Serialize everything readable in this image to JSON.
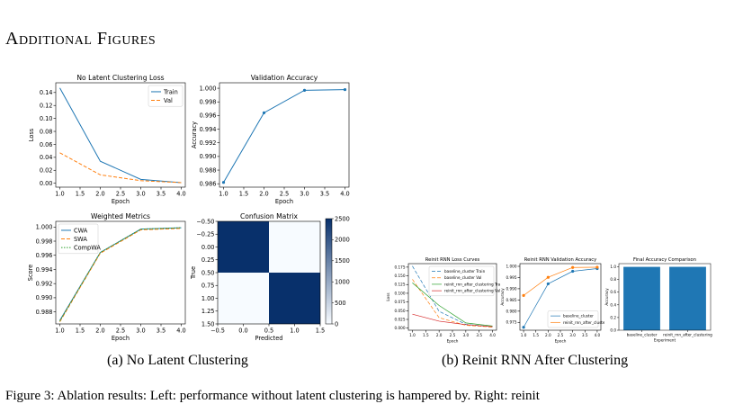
{
  "section": {
    "title": "Additional Figures"
  },
  "captions": {
    "a": "(a) No Latent Clustering",
    "b": "(b) Reinit RNN After Clustering",
    "figure": "Figure 3:  Ablation results: Left: performance without latent clustering is hampered by. Right: reinit"
  },
  "chart_data": [
    {
      "type": "line",
      "title": "No Latent Clustering Loss",
      "xlabel": "Epoch",
      "ylabel": "Loss",
      "x": [
        1,
        2,
        3,
        4
      ],
      "xlim": [
        0.9,
        4.1
      ],
      "ylim": [
        -0.006,
        0.155
      ],
      "xticks": [
        "1.0",
        "1.5",
        "2.0",
        "2.5",
        "3.0",
        "3.5",
        "4.0"
      ],
      "yticks": [
        "0.00",
        "0.02",
        "0.04",
        "0.06",
        "0.08",
        "0.10",
        "0.12",
        "0.14"
      ],
      "series": [
        {
          "name": "Train",
          "values": [
            0.147,
            0.034,
            0.006,
            0.001
          ],
          "color": "#1f77b4",
          "dash": "solid"
        },
        {
          "name": "Val",
          "values": [
            0.047,
            0.013,
            0.004,
            0.001
          ],
          "color": "#ff7f0e",
          "dash": "dashed"
        }
      ],
      "legend": "top-right"
    },
    {
      "type": "line",
      "title": "Validation Accuracy",
      "xlabel": "Epoch",
      "ylabel": "Accuracy",
      "x": [
        1,
        2,
        3,
        4
      ],
      "xlim": [
        0.9,
        4.1
      ],
      "ylim": [
        0.9855,
        1.0008
      ],
      "xticks": [
        "1.0",
        "1.5",
        "2.0",
        "2.5",
        "3.0",
        "3.5",
        "4.0"
      ],
      "yticks": [
        "0.986",
        "0.988",
        "0.990",
        "0.992",
        "0.994",
        "0.996",
        "0.998",
        "1.000"
      ],
      "series": [
        {
          "values": [
            0.9862,
            0.9964,
            0.9997,
            0.9998
          ],
          "color": "#1f77b4",
          "dash": "solid",
          "markers": true
        }
      ]
    },
    {
      "type": "line",
      "title": "Weighted Metrics",
      "xlabel": "Epoch",
      "ylabel": "Score",
      "x": [
        1,
        2,
        3,
        4
      ],
      "xlim": [
        0.9,
        4.1
      ],
      "ylim": [
        0.9863,
        1.0008
      ],
      "xticks": [
        "1.0",
        "1.5",
        "2.0",
        "2.5",
        "3.0",
        "3.5",
        "4.0"
      ],
      "yticks": [
        "0.988",
        "0.990",
        "0.992",
        "0.994",
        "0.996",
        "0.998",
        "1.000"
      ],
      "series": [
        {
          "name": "CWA",
          "values": [
            0.9868,
            0.9964,
            0.9997,
            0.9999
          ],
          "color": "#1f77b4",
          "dash": "solid"
        },
        {
          "name": "SWA",
          "values": [
            0.9866,
            0.9963,
            0.9996,
            0.9998
          ],
          "color": "#ff7f0e",
          "dash": "dashed"
        },
        {
          "name": "CompWA",
          "values": [
            0.9867,
            0.9964,
            0.9997,
            0.9999
          ],
          "color": "#2ca02c",
          "dash": "dotted"
        }
      ],
      "legend": "top-left"
    },
    {
      "type": "heatmap",
      "title": "Confusion Matrix",
      "xlabel": "Predicted",
      "ylabel": "True",
      "xticks": [
        "−0.5",
        "0.0",
        "0.5",
        "1.0",
        "1.5"
      ],
      "yticks": [
        "−0.50",
        "−0.25",
        "0.00",
        "0.25",
        "0.50",
        "0.75",
        "1.00",
        "1.25",
        "1.50"
      ],
      "matrix": [
        [
          2500,
          0
        ],
        [
          0,
          2500
        ]
      ],
      "colorbar_ticks": [
        "0",
        "500",
        "1000",
        "1500",
        "2000",
        "2500"
      ],
      "cmap": [
        "#f7fbff",
        "#08306b"
      ]
    },
    {
      "type": "line",
      "title": "Reinit RNN Loss Curves",
      "xlabel": "Epoch",
      "ylabel": "Loss",
      "x": [
        1,
        2,
        3,
        4
      ],
      "xlim": [
        0.85,
        4.15
      ],
      "ylim": [
        -0.006,
        0.185
      ],
      "xticks": [
        "1.0",
        "1.5",
        "2.0",
        "2.5",
        "3.0",
        "3.5",
        "4.0"
      ],
      "yticks": [
        "0.000",
        "0.025",
        "0.050",
        "0.075",
        "0.100",
        "0.125",
        "0.150",
        "0.175"
      ],
      "series": [
        {
          "name": "baseline_cluster Train",
          "values": [
            0.178,
            0.048,
            0.011,
            0.004
          ],
          "color": "#1f77b4",
          "dash": "dashed"
        },
        {
          "name": "baseline_cluster Val",
          "values": [
            0.14,
            0.03,
            0.008,
            0.003
          ],
          "color": "#ff7f0e",
          "dash": "dashed"
        },
        {
          "name": "reinit_rnn_after_clustering Train",
          "values": [
            0.13,
            0.065,
            0.015,
            0.006
          ],
          "color": "#2ca02c",
          "dash": "solid"
        },
        {
          "name": "reinit_rnn_after_clustering Val",
          "values": [
            0.04,
            0.02,
            0.01,
            0.004
          ],
          "color": "#d62728",
          "dash": "solid"
        }
      ],
      "legend": "top-right"
    },
    {
      "type": "line",
      "title": "Reinit RNN Validation Accuracy",
      "xlabel": "Epoch",
      "ylabel": "Accuracy",
      "x": [
        1,
        2,
        3,
        4
      ],
      "xlim": [
        0.85,
        4.15
      ],
      "ylim": [
        0.9715,
        1.0012
      ],
      "xticks": [
        "1.0",
        "1.5",
        "2.0",
        "2.5",
        "3.0",
        "3.5",
        "4.0"
      ],
      "yticks": [
        "0.975",
        "0.980",
        "0.985",
        "0.990",
        "0.995",
        "1.000"
      ],
      "series": [
        {
          "name": "baseline_cluster",
          "values": [
            0.9728,
            0.9922,
            0.9978,
            0.999
          ],
          "color": "#1f77b4",
          "dash": "solid",
          "markers": true
        },
        {
          "name": "reinit_rnn_after_clustering",
          "values": [
            0.987,
            0.9951,
            0.9995,
            0.9996
          ],
          "color": "#ff7f0e",
          "dash": "solid",
          "markers": true
        }
      ],
      "legend": "bottom-right"
    },
    {
      "type": "bar",
      "title": "Final Accuracy Comparison",
      "xlabel": "Experiment",
      "ylabel": "Accuracy",
      "categories": [
        "baseline_cluster",
        "reinit_rnn_after_clustering"
      ],
      "values": [
        0.999,
        0.9996
      ],
      "ylim": [
        0,
        1.05
      ],
      "yticks": [
        "0.0",
        "0.2",
        "0.4",
        "0.6",
        "0.8",
        "1.0"
      ],
      "color": "#1f77b4"
    }
  ]
}
